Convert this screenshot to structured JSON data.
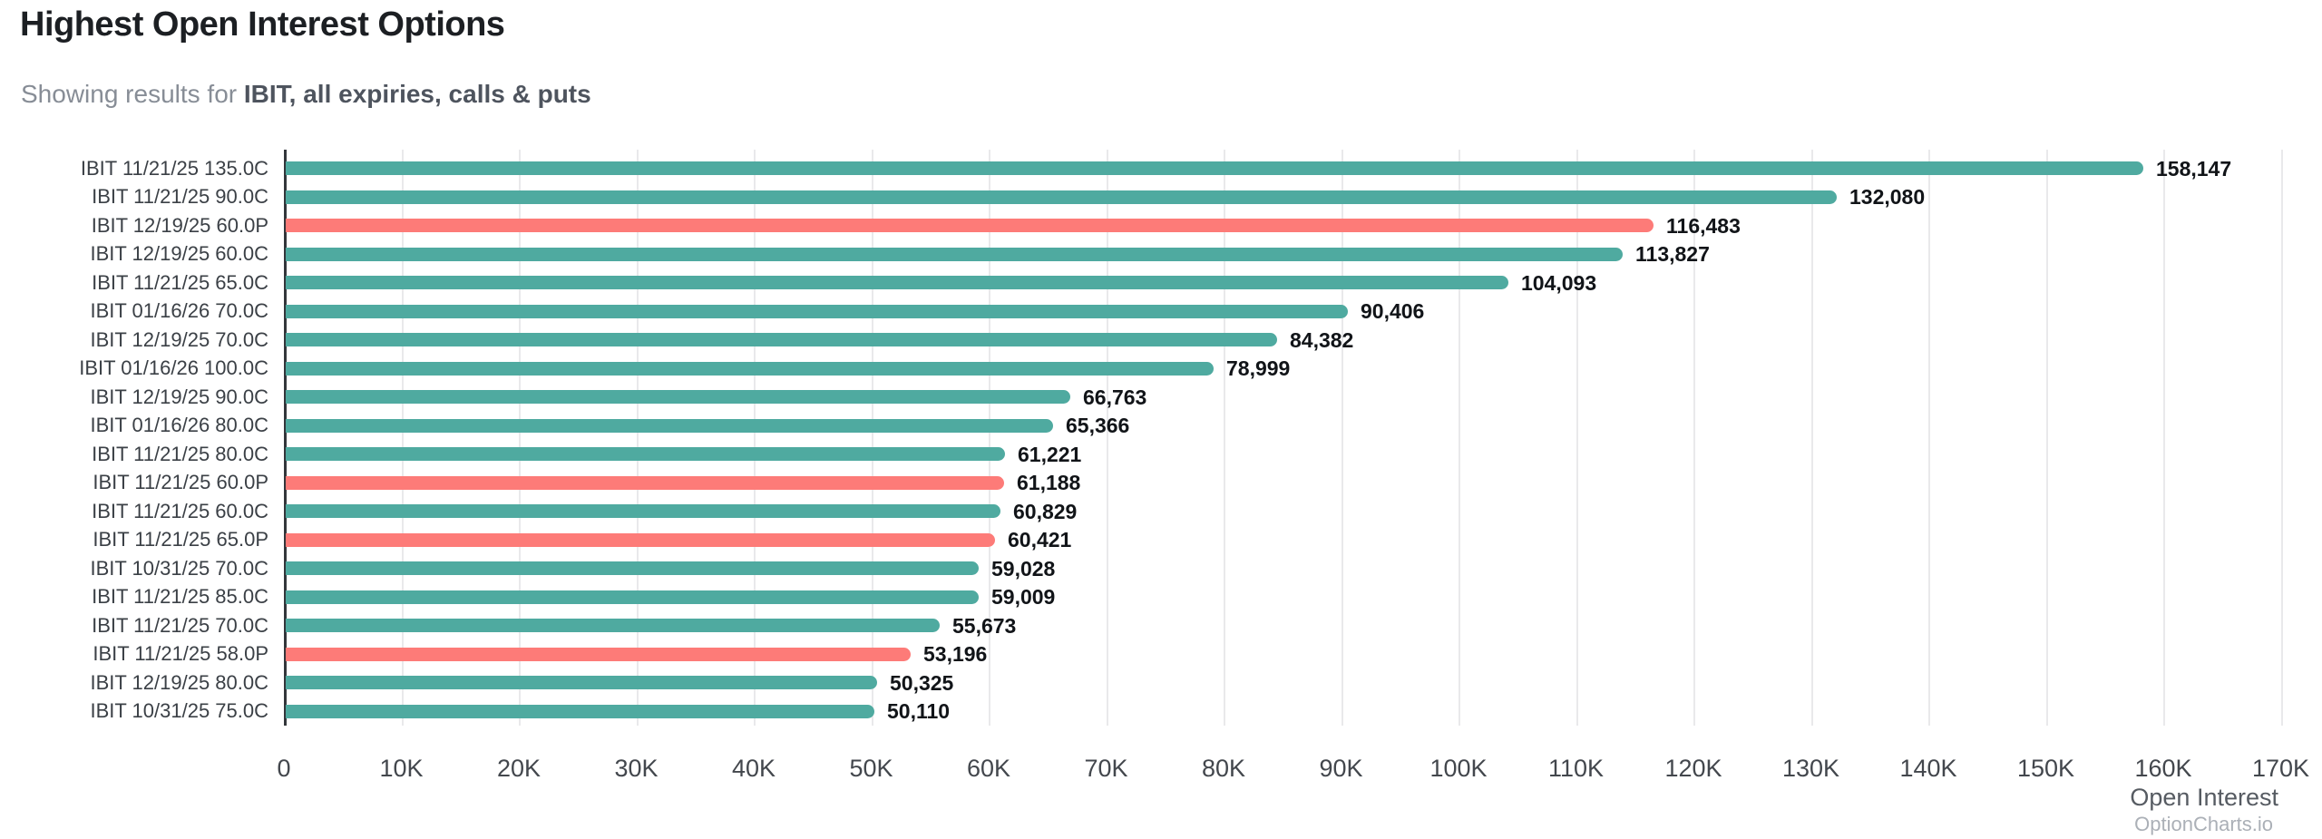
{
  "header": {
    "title": "Highest Open Interest Options",
    "subtitle_prefix": "Showing results for ",
    "subtitle_bold": "IBIT, all expiries, calls & puts"
  },
  "footer": {
    "axis_title": "Open Interest",
    "watermark": "OptionCharts.io"
  },
  "chart_data": {
    "type": "bar",
    "orientation": "horizontal",
    "title": "Highest Open Interest Options",
    "xlabel": "Open Interest",
    "ylabel": "",
    "xlim": [
      0,
      170000
    ],
    "x_tick_step": 10000,
    "x_tick_labels": [
      "0",
      "10K",
      "20K",
      "30K",
      "40K",
      "50K",
      "60K",
      "70K",
      "80K",
      "90K",
      "100K",
      "110K",
      "120K",
      "130K",
      "140K",
      "150K",
      "160K",
      "170K"
    ],
    "grid": true,
    "legend": false,
    "colors": {
      "call": "#4faaa0",
      "put": "#fd7b78"
    },
    "items": [
      {
        "label": "IBIT 11/21/25 135.0C",
        "value": 158147,
        "value_label": "158,147",
        "type": "call"
      },
      {
        "label": "IBIT 11/21/25 90.0C",
        "value": 132080,
        "value_label": "132,080",
        "type": "call"
      },
      {
        "label": "IBIT 12/19/25 60.0P",
        "value": 116483,
        "value_label": "116,483",
        "type": "put"
      },
      {
        "label": "IBIT 12/19/25 60.0C",
        "value": 113827,
        "value_label": "113,827",
        "type": "call"
      },
      {
        "label": "IBIT 11/21/25 65.0C",
        "value": 104093,
        "value_label": "104,093",
        "type": "call"
      },
      {
        "label": "IBIT 01/16/26 70.0C",
        "value": 90406,
        "value_label": "90,406",
        "type": "call"
      },
      {
        "label": "IBIT 12/19/25 70.0C",
        "value": 84382,
        "value_label": "84,382",
        "type": "call"
      },
      {
        "label": "IBIT 01/16/26 100.0C",
        "value": 78999,
        "value_label": "78,999",
        "type": "call"
      },
      {
        "label": "IBIT 12/19/25 90.0C",
        "value": 66763,
        "value_label": "66,763",
        "type": "call"
      },
      {
        "label": "IBIT 01/16/26 80.0C",
        "value": 65366,
        "value_label": "65,366",
        "type": "call"
      },
      {
        "label": "IBIT 11/21/25 80.0C",
        "value": 61221,
        "value_label": "61,221",
        "type": "call"
      },
      {
        "label": "IBIT 11/21/25 60.0P",
        "value": 61188,
        "value_label": "61,188",
        "type": "put"
      },
      {
        "label": "IBIT 11/21/25 60.0C",
        "value": 60829,
        "value_label": "60,829",
        "type": "call"
      },
      {
        "label": "IBIT 11/21/25 65.0P",
        "value": 60421,
        "value_label": "60,421",
        "type": "put"
      },
      {
        "label": "IBIT 10/31/25 70.0C",
        "value": 59028,
        "value_label": "59,028",
        "type": "call"
      },
      {
        "label": "IBIT 11/21/25 85.0C",
        "value": 59009,
        "value_label": "59,009",
        "type": "call"
      },
      {
        "label": "IBIT 11/21/25 70.0C",
        "value": 55673,
        "value_label": "55,673",
        "type": "call"
      },
      {
        "label": "IBIT 11/21/25 58.0P",
        "value": 53196,
        "value_label": "53,196",
        "type": "put"
      },
      {
        "label": "IBIT 12/19/25 80.0C",
        "value": 50325,
        "value_label": "50,325",
        "type": "call"
      },
      {
        "label": "IBIT 10/31/25 75.0C",
        "value": 50110,
        "value_label": "50,110",
        "type": "call"
      }
    ]
  }
}
